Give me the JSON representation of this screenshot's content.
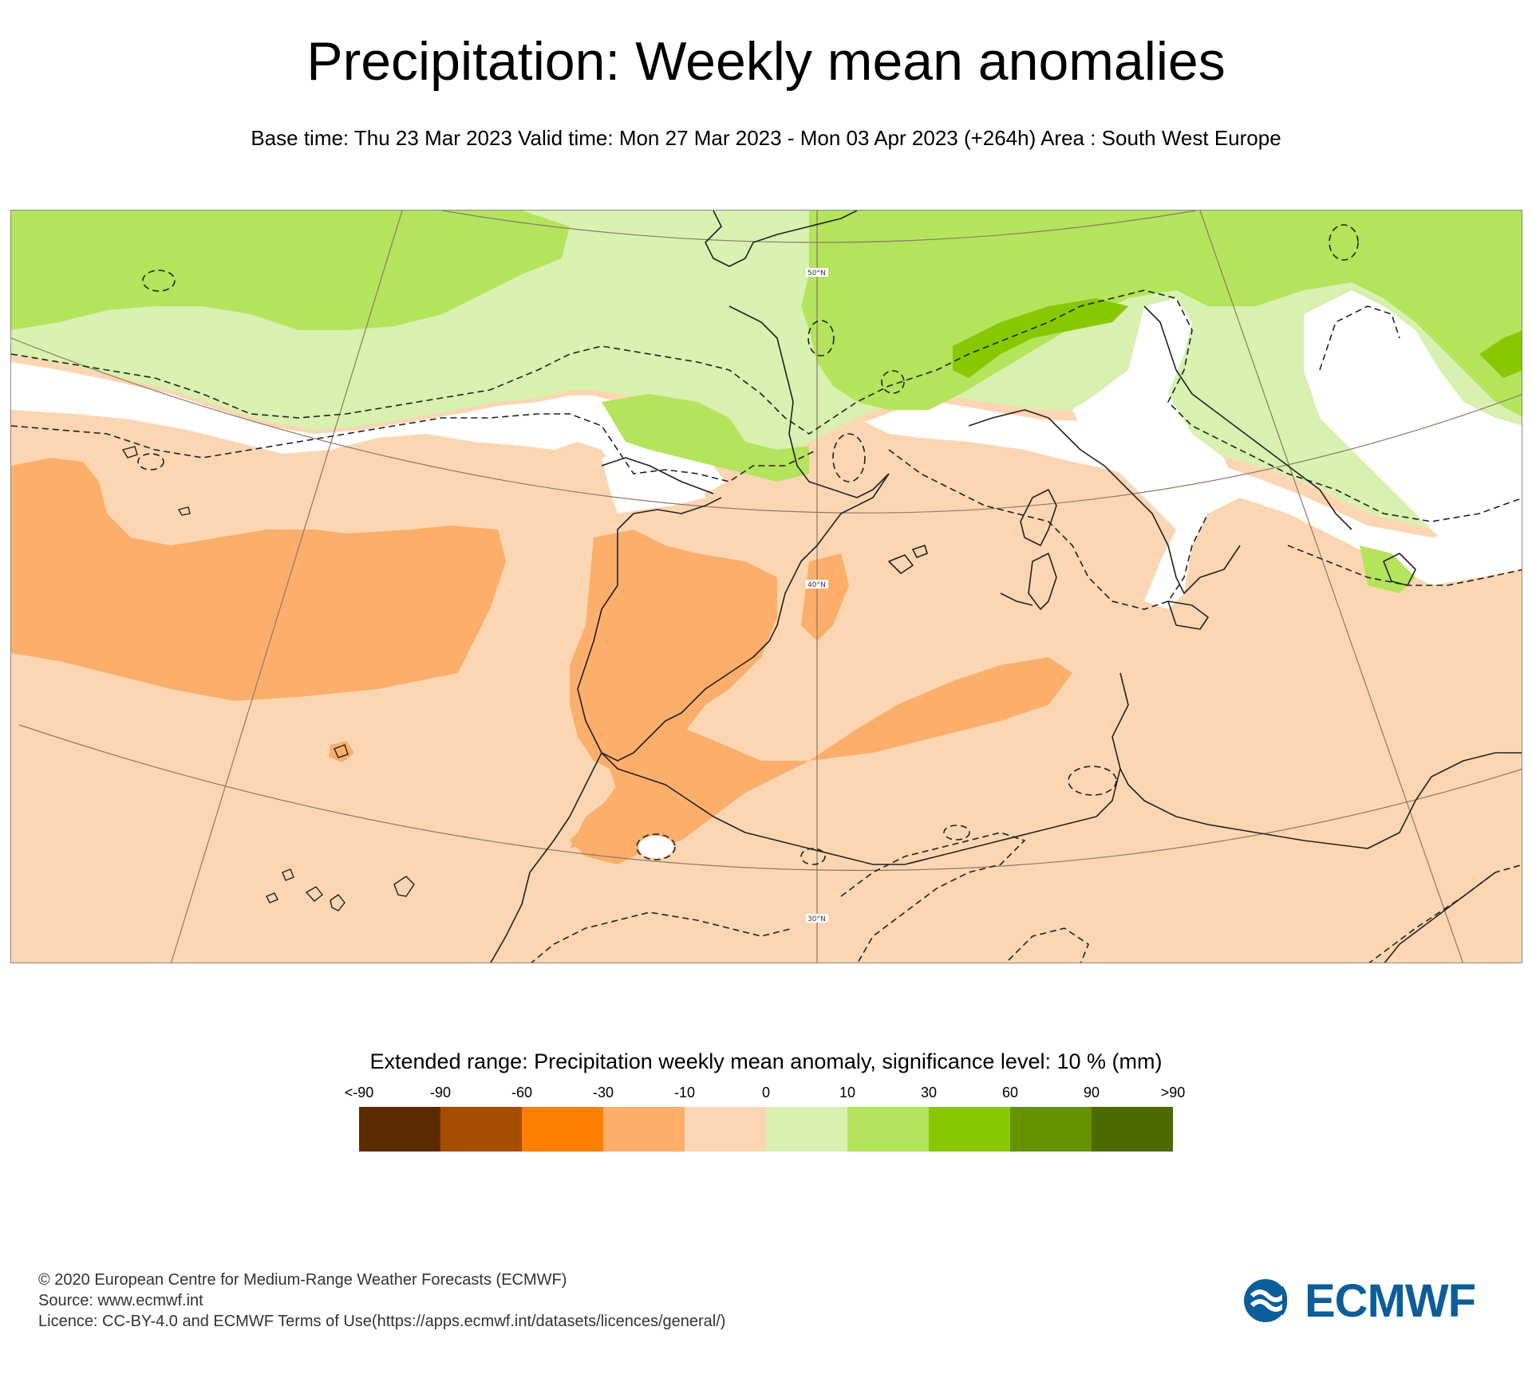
{
  "header": {
    "title": "Precipitation: Weekly mean anomalies",
    "subtitle": "Base time: Thu 23 Mar 2023 Valid time: Mon 27 Mar 2023 - Mon 03 Apr 2023 (+264h) Area : South West Europe"
  },
  "map": {
    "region": "South West Europe",
    "latitude_labels": [
      "50°N",
      "40°N",
      "30°N"
    ]
  },
  "legend": {
    "title": "Extended range: Precipitation weekly mean anomaly, significance level: 10 % (mm)",
    "ticks": [
      "<-90",
      "-90",
      "-60",
      "-30",
      "-10",
      "0",
      "10",
      "30",
      "60",
      "90",
      ">90"
    ],
    "colors": [
      "#5c2c00",
      "#a64e00",
      "#ff7f00",
      "#fdae6b",
      "#fcd6b2",
      "#d8f0b0",
      "#b4e35c",
      "#88c800",
      "#669200",
      "#4b6a00"
    ]
  },
  "footer": {
    "copyright": "© 2020 European Centre for Medium-Range Weather Forecasts (ECMWF)",
    "source": "Source: www.ecmwf.int",
    "licence": "Licence: CC-BY-4.0 and ECMWF Terms of Use(https://apps.ecmwf.int/datasets/licences/general/)"
  },
  "logo": {
    "text": "ECMWF",
    "color": "#0b5e9a"
  }
}
